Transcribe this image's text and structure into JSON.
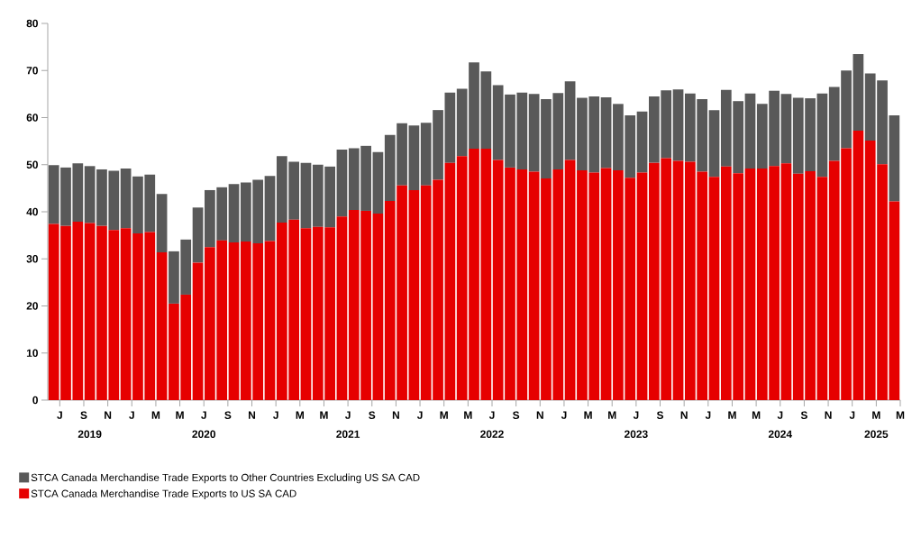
{
  "chart_data": {
    "type": "bar",
    "stacked": true,
    "legend": "bottom",
    "categories": [
      "J",
      null,
      "S",
      null,
      "N",
      null,
      "J",
      null,
      "M",
      null,
      "M",
      null,
      "J",
      null,
      "S",
      null,
      "N",
      null,
      "J",
      null,
      "M",
      null,
      "M",
      null,
      "J",
      null,
      "S",
      null,
      "N",
      null,
      "J",
      null,
      "M",
      null,
      "M",
      null,
      "J",
      null,
      "S",
      null,
      "N",
      null,
      "J",
      null,
      "M",
      null,
      "M",
      null,
      "J",
      null,
      "S",
      null,
      "N",
      null,
      "J",
      null,
      "M",
      null,
      "M",
      null,
      "J",
      null,
      "S",
      null,
      "N",
      null,
      "J",
      null,
      "M",
      null,
      "M"
    ],
    "series": [
      {
        "name": "STCA Canada Merchandise Trade Exports to US SA CAD",
        "color": "#e60000",
        "values": [
          37.4,
          37.0,
          37.9,
          37.6,
          37.0,
          36.1,
          36.5,
          35.4,
          35.7,
          31.4,
          20.5,
          22.4,
          29.2,
          32.5,
          33.9,
          33.5,
          33.7,
          33.3,
          33.8,
          37.7,
          38.3,
          36.5,
          36.8,
          36.7,
          39.0,
          40.4,
          40.2,
          39.6,
          42.3,
          45.6,
          44.6,
          45.6,
          46.8,
          50.4,
          51.8,
          53.4,
          53.4,
          51.0,
          49.4,
          49.0,
          48.5,
          47.1,
          49.0,
          51.0,
          48.8,
          48.3,
          49.3,
          48.8,
          47.2,
          48.3,
          50.4,
          51.4,
          50.8,
          50.6,
          48.5,
          47.4,
          49.6,
          48.2,
          49.2,
          49.2,
          49.7,
          50.3,
          48.1,
          48.6,
          47.4,
          50.8,
          53.5,
          57.2,
          55.1,
          50.1,
          42.2
        ]
      },
      {
        "name": "STCA Canada Merchandise Trade Exports to Other Countries Excluding US SA CAD",
        "color": "#595959",
        "values": [
          12.5,
          12.4,
          12.4,
          12.1,
          12.0,
          12.6,
          12.7,
          12.1,
          12.2,
          12.4,
          11.1,
          11.7,
          11.7,
          12.1,
          11.3,
          12.4,
          12.5,
          13.5,
          13.8,
          14.1,
          12.3,
          13.9,
          13.2,
          12.9,
          14.2,
          13.1,
          13.8,
          13.1,
          14.0,
          13.2,
          13.7,
          13.3,
          14.8,
          14.9,
          14.3,
          18.3,
          16.4,
          15.9,
          15.5,
          16.3,
          16.5,
          16.8,
          16.2,
          16.7,
          15.4,
          16.2,
          15.0,
          14.1,
          13.3,
          13.0,
          14.1,
          14.4,
          15.2,
          14.5,
          15.4,
          14.2,
          16.3,
          15.3,
          15.9,
          13.7,
          16.0,
          14.7,
          16.1,
          15.5,
          17.7,
          15.7,
          16.5,
          16.3,
          14.3,
          17.8,
          18.3
        ]
      }
    ],
    "ylim": [
      0,
      80
    ],
    "yticks": [
      0,
      10,
      20,
      30,
      40,
      50,
      60,
      70,
      80
    ],
    "annotations": [
      "2019",
      "2020",
      "2021",
      "2022",
      "2023",
      "2024",
      "2025"
    ]
  }
}
